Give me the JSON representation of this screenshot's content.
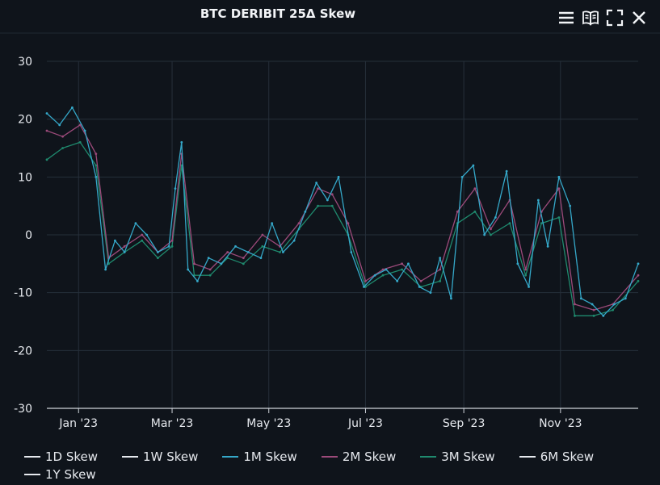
{
  "chart_data": {
    "type": "line",
    "title": "BTC DERIBIT 25Δ Skew",
    "xlabel": "",
    "ylabel": "",
    "ylim": [
      -30,
      30
    ],
    "yticks": [
      30,
      20,
      10,
      0,
      -10,
      -20,
      -30
    ],
    "xlim": [
      "2022-12-12",
      "2023-12-20"
    ],
    "xticks": [
      {
        "date": "2023-01-01",
        "label": "Jan '23"
      },
      {
        "date": "2023-03-01",
        "label": "Mar '23"
      },
      {
        "date": "2023-05-01",
        "label": "May '23"
      },
      {
        "date": "2023-07-01",
        "label": "Jul '23"
      },
      {
        "date": "2023-09-01",
        "label": "Sep '23"
      },
      {
        "date": "2023-11-01",
        "label": "Nov '23"
      }
    ],
    "grid": true,
    "legend_position": "bottom",
    "series": [
      {
        "name": "1D Skew",
        "color": "#e6e9ee",
        "values": []
      },
      {
        "name": "1W Skew",
        "color": "#e6e9ee",
        "values": []
      },
      {
        "name": "1M Skew",
        "color": "#35a8c9",
        "x": [
          "2022-12-12",
          "2022-12-20",
          "2022-12-28",
          "2023-01-05",
          "2023-01-12",
          "2023-01-18",
          "2023-01-24",
          "2023-01-30",
          "2023-02-06",
          "2023-02-13",
          "2023-02-20",
          "2023-02-27",
          "2023-03-03",
          "2023-03-07",
          "2023-03-11",
          "2023-03-17",
          "2023-03-24",
          "2023-04-01",
          "2023-04-10",
          "2023-04-18",
          "2023-04-26",
          "2023-05-03",
          "2023-05-10",
          "2023-05-17",
          "2023-05-24",
          "2023-05-31",
          "2023-06-07",
          "2023-06-14",
          "2023-06-22",
          "2023-06-30",
          "2023-07-07",
          "2023-07-14",
          "2023-07-21",
          "2023-07-28",
          "2023-08-04",
          "2023-08-11",
          "2023-08-17",
          "2023-08-24",
          "2023-08-31",
          "2023-09-07",
          "2023-09-14",
          "2023-09-21",
          "2023-09-28",
          "2023-10-05",
          "2023-10-12",
          "2023-10-18",
          "2023-10-24",
          "2023-10-31",
          "2023-11-07",
          "2023-11-14",
          "2023-11-21",
          "2023-11-28",
          "2023-12-05",
          "2023-12-12",
          "2023-12-20"
        ],
        "values": [
          21,
          19,
          22,
          18,
          10,
          -6,
          -1,
          -3,
          2,
          0,
          -3,
          -2,
          8,
          16,
          -6,
          -8,
          -4,
          -5,
          -2,
          -3,
          -4,
          2,
          -3,
          -1,
          4,
          9,
          6,
          10,
          -3,
          -9,
          -7,
          -6,
          -8,
          -5,
          -9,
          -10,
          -4,
          -11,
          10,
          12,
          0,
          3,
          11,
          -5,
          -9,
          6,
          -2,
          10,
          5,
          -11,
          -12,
          -14,
          -12,
          -11,
          -5
        ]
      },
      {
        "name": "2M Skew",
        "color": "#9c4a7a",
        "x": [
          "2022-12-12",
          "2022-12-22",
          "2023-01-02",
          "2023-01-12",
          "2023-01-20",
          "2023-01-30",
          "2023-02-10",
          "2023-02-20",
          "2023-03-01",
          "2023-03-07",
          "2023-03-15",
          "2023-03-25",
          "2023-04-05",
          "2023-04-15",
          "2023-04-27",
          "2023-05-08",
          "2023-05-20",
          "2023-06-01",
          "2023-06-10",
          "2023-06-20",
          "2023-07-01",
          "2023-07-12",
          "2023-07-24",
          "2023-08-05",
          "2023-08-17",
          "2023-08-28",
          "2023-09-08",
          "2023-09-18",
          "2023-09-30",
          "2023-10-10",
          "2023-10-20",
          "2023-10-31",
          "2023-11-10",
          "2023-11-22",
          "2023-12-04",
          "2023-12-20"
        ],
        "values": [
          18,
          17,
          19,
          14,
          -4,
          -2,
          0,
          -3,
          -1,
          14,
          -5,
          -6,
          -3,
          -4,
          0,
          -2,
          2,
          8,
          7,
          2,
          -8,
          -6,
          -5,
          -8,
          -6,
          4,
          8,
          1,
          6,
          -6,
          4,
          8,
          -12,
          -13,
          -12,
          -7
        ]
      },
      {
        "name": "3M Skew",
        "color": "#1f8a6e",
        "x": [
          "2022-12-12",
          "2022-12-22",
          "2023-01-02",
          "2023-01-12",
          "2023-01-20",
          "2023-01-30",
          "2023-02-10",
          "2023-02-20",
          "2023-03-01",
          "2023-03-07",
          "2023-03-15",
          "2023-03-25",
          "2023-04-05",
          "2023-04-15",
          "2023-04-27",
          "2023-05-08",
          "2023-05-20",
          "2023-06-01",
          "2023-06-10",
          "2023-06-20",
          "2023-07-01",
          "2023-07-12",
          "2023-07-24",
          "2023-08-05",
          "2023-08-17",
          "2023-08-28",
          "2023-09-08",
          "2023-09-18",
          "2023-09-30",
          "2023-10-10",
          "2023-10-20",
          "2023-10-31",
          "2023-11-10",
          "2023-11-22",
          "2023-12-04",
          "2023-12-20"
        ],
        "values": [
          13,
          15,
          16,
          12,
          -5,
          -3,
          -1,
          -4,
          -2,
          12,
          -7,
          -7,
          -4,
          -5,
          -2,
          -3,
          1,
          5,
          5,
          0,
          -9,
          -7,
          -6,
          -9,
          -8,
          2,
          4,
          0,
          2,
          -7,
          2,
          3,
          -14,
          -14,
          -13,
          -8
        ]
      },
      {
        "name": "6M Skew",
        "color": "#e6e9ee",
        "values": []
      },
      {
        "name": "1Y Skew",
        "color": "#e6e9ee",
        "values": []
      }
    ]
  },
  "toolbar": {
    "icons": [
      "menu-icon",
      "book-icon",
      "fullscreen-icon",
      "close-icon"
    ]
  }
}
